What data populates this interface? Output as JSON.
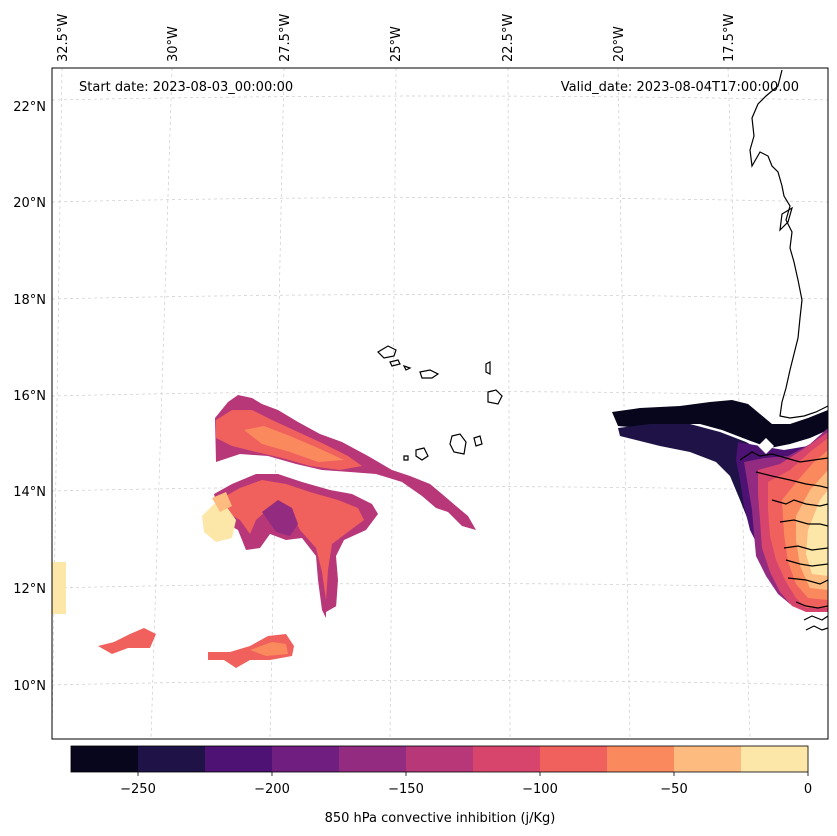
{
  "header": {
    "start_date": "Start date: 2023-08-03_00:00:00",
    "valid_date": "Valid_date: 2023-08-04T17:00:00.00"
  },
  "lon_labels": [
    "32.5°W",
    "30°W",
    "27.5°W",
    "25°W",
    "22.5°W",
    "20°W",
    "17.5°W"
  ],
  "lat_labels": [
    "22°N",
    "20°N",
    "18°N",
    "16°N",
    "14°N",
    "12°N",
    "10°N"
  ],
  "colorbar": {
    "label": "850 hPa convective inhibition (j/Kg)",
    "tick_labels": [
      "−250",
      "−200",
      "−150",
      "−100",
      "−50",
      "0"
    ],
    "levels": [
      -275,
      -250,
      -225,
      -200,
      -175,
      -150,
      -125,
      -100,
      -75,
      -50,
      -25,
      0
    ],
    "colors": [
      "#07061c",
      "#1e1246",
      "#4d1273",
      "#701f81",
      "#932b80",
      "#b73779",
      "#d8456c",
      "#f0605d",
      "#fa8a5d",
      "#febb80",
      "#fde7a8"
    ]
  }
}
